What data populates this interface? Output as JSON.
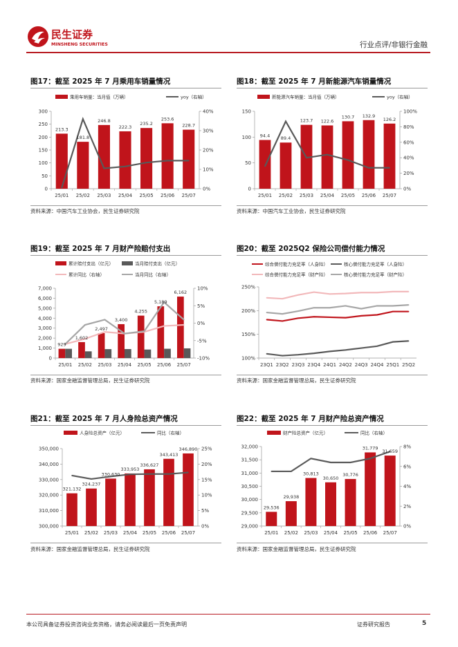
{
  "header": {
    "brand_cn": "民生证券",
    "brand_en": "MINSHENG SECURITIES",
    "category": "行业点评/非银行金融"
  },
  "footer": {
    "disclaimer": "本公司具备证券投资咨询业务资格，请务必阅读最后一页免责声明",
    "report_type": "证券研究报告",
    "page_number": "5"
  },
  "colors": {
    "red": "#c0141b",
    "dark": "#595959",
    "gray": "#a6a6a6",
    "pink": "#f2b8ba"
  },
  "charts": [
    {
      "id": "fig17",
      "title": "图17：截至 2025 年 7 月乘用车销量情况",
      "source": "资料来源：中国汽车工业协会，民生证券研究院",
      "legend": [
        {
          "label": "乘用车销量：当月值（万辆）",
          "kind": "bar",
          "color": "#c0141b"
        },
        {
          "label": "yoy（右轴）",
          "kind": "line",
          "color": "#595959"
        }
      ],
      "left_ticks": [
        "0",
        "50",
        "100",
        "150",
        "200",
        "250",
        "300"
      ],
      "right_ticks": [
        "0%",
        "10%",
        "20%",
        "30%",
        "40%"
      ]
    },
    {
      "id": "fig18",
      "title": "图18：截至 2025 年 7 月新能源汽车销量情况",
      "source": "资料来源：中国汽车工业协会，民生证券研究院",
      "legend": [
        {
          "label": "新能源汽车销量：当月值（万辆）",
          "kind": "bar",
          "color": "#c0141b"
        },
        {
          "label": "yoy（右轴）",
          "kind": "line",
          "color": "#595959"
        }
      ],
      "left_ticks": [
        "0",
        "50",
        "100",
        "150"
      ],
      "right_ticks": [
        "0%",
        "20%",
        "40%",
        "60%",
        "80%",
        "100%"
      ]
    },
    {
      "id": "fig19",
      "title": "图19：截至 2025 年 7 月财产险赔付支出",
      "source": "资料来源：国家金融监督管理总局，民生证券研究院",
      "legend": [
        {
          "label": "累计赔付支出（亿元）",
          "kind": "bar",
          "color": "#c0141b"
        },
        {
          "label": "当月赔付支出（亿元）",
          "kind": "bar",
          "color": "#595959"
        },
        {
          "label": "累计同比（右轴）",
          "kind": "line",
          "color": "#f2b8ba"
        },
        {
          "label": "当月同比（右轴）",
          "kind": "line",
          "color": "#a6a6a6"
        }
      ],
      "left_ticks": [
        "0",
        "1,000",
        "2,000",
        "3,000",
        "4,000",
        "5,000",
        "6,000",
        "7,000"
      ],
      "right_ticks": [
        "-10%",
        "-5%",
        "0%",
        "5%",
        "10%"
      ]
    },
    {
      "id": "fig20",
      "title": "图20：截至 2025Q2 保险公司偿付能力情况",
      "source": "资料来源：国家金融监督管理总局，民生证券研究院",
      "legend": [
        {
          "label": "综合偿付能力充足率（人身险）",
          "kind": "line",
          "color": "#c0141b"
        },
        {
          "label": "核心偿付能力充足率（人身险）",
          "kind": "line",
          "color": "#595959"
        },
        {
          "label": "综合偿付能力充足率（财产险）",
          "kind": "line",
          "color": "#f2b8ba"
        },
        {
          "label": "核心偿付能力充足率（财产险）",
          "kind": "line",
          "color": "#a6a6a6"
        }
      ],
      "left_ticks": [
        "100%",
        "150%",
        "200%",
        "250%"
      ],
      "right_ticks": []
    },
    {
      "id": "fig21",
      "title": "图21：截至 2025 年 7 月人身险总资产情况",
      "source": "资料来源：国家金融监督管理总局，民生证券研究院",
      "legend": [
        {
          "label": "人身险总资产（亿元）",
          "kind": "bar",
          "color": "#c0141b"
        },
        {
          "label": "同比（右轴）",
          "kind": "line",
          "color": "#595959"
        }
      ],
      "left_ticks": [
        "300,000",
        "310,000",
        "320,000",
        "330,000",
        "340,000",
        "350,000"
      ],
      "right_ticks": [
        "0%",
        "5%",
        "10%",
        "15%",
        "20%",
        "25%"
      ]
    },
    {
      "id": "fig22",
      "title": "图22：截至 2025 年 7 月财产险总资产情况",
      "source": "资料来源：国家金融监督管理总局，民生证券研究院",
      "legend": [
        {
          "label": "财产险总资产（亿元）",
          "kind": "bar",
          "color": "#c0141b"
        },
        {
          "label": "同比（右轴）",
          "kind": "line",
          "color": "#595959"
        }
      ],
      "left_ticks": [
        "29,000",
        "29,500",
        "30,000",
        "30,500",
        "31,000",
        "31,500",
        "32,000"
      ],
      "right_ticks": [
        "0%",
        "2%",
        "4%",
        "6%",
        "8%"
      ]
    }
  ],
  "chart_data": [
    {
      "type": "bar",
      "title": "图17：截至 2025 年 7 月乘用车销量情况",
      "categories": [
        "25/01",
        "25/02",
        "25/03",
        "25/04",
        "25/05",
        "25/06",
        "25/07"
      ],
      "series": [
        {
          "name": "乘用车销量：当月值（万辆）",
          "axis": "left",
          "type": "bar",
          "values": [
            213.3,
            181.8,
            246.8,
            222.3,
            235.2,
            253.6,
            228.7
          ],
          "labels": [
            "213.3",
            "181.8",
            "246.8",
            "222.3",
            "235.2",
            "253.6",
            "228.7"
          ]
        },
        {
          "name": "yoy（右轴）",
          "axis": "right",
          "type": "line",
          "values": [
            0.5,
            36,
            10.5,
            11.5,
            13.5,
            14.5,
            14.5
          ]
        }
      ],
      "ylim": [
        0,
        300
      ],
      "y2lim": [
        0,
        40
      ]
    },
    {
      "type": "bar",
      "title": "图18：截至 2025 年 7 月新能源汽车销量情况",
      "categories": [
        "25/01",
        "25/02",
        "25/03",
        "25/04",
        "25/05",
        "25/06",
        "25/07"
      ],
      "series": [
        {
          "name": "新能源汽车销量：当月值（万辆）",
          "axis": "left",
          "type": "bar",
          "values": [
            94.4,
            89.4,
            123.7,
            122.6,
            130.7,
            132.9,
            126.2
          ],
          "labels": [
            "94.4",
            "89.4",
            "123.7",
            "122.6",
            "130.7",
            "132.9",
            "126.2"
          ]
        },
        {
          "name": "yoy（右轴）",
          "axis": "right",
          "type": "line",
          "values": [
            29,
            87,
            40,
            44,
            37,
            27,
            27
          ]
        }
      ],
      "ylim": [
        0,
        150
      ],
      "y2lim": [
        0,
        100
      ]
    },
    {
      "type": "bar",
      "title": "图19：截至 2025 年 7 月财产险赔付支出",
      "categories": [
        "25/01",
        "25/02",
        "25/03",
        "25/04",
        "25/05",
        "25/06",
        "25/07"
      ],
      "series": [
        {
          "name": "累计赔付支出（亿元）",
          "axis": "left",
          "type": "bar",
          "values": [
            929,
            1602,
            2497,
            3400,
            4255,
            5189,
            6162
          ],
          "labels": [
            "929",
            "1,602",
            "2,497",
            "3,400",
            "4,255",
            "5,189",
            "6,162"
          ]
        },
        {
          "name": "当月赔付支出（亿元）",
          "axis": "left",
          "type": "bar",
          "values": [
            929,
            673,
            895,
            903,
            855,
            934,
            973
          ]
        },
        {
          "name": "累计同比（右轴）",
          "axis": "right",
          "type": "line",
          "values": [
            -6,
            -4.5,
            -2.5,
            -3,
            -2.5,
            -0.8,
            -0.5
          ]
        },
        {
          "name": "当月同比（右轴）",
          "axis": "right",
          "type": "line",
          "values": [
            -6,
            -0.5,
            1,
            -3,
            -2.3,
            6,
            1
          ]
        }
      ],
      "ylim": [
        0,
        7000
      ],
      "y2lim": [
        -10,
        10
      ]
    },
    {
      "type": "line",
      "title": "图20：截至 2025Q2 保险公司偿付能力情况",
      "categories": [
        "23Q1",
        "23Q2",
        "23Q3",
        "23Q4",
        "24Q1",
        "24Q2",
        "24Q3",
        "24Q4",
        "25Q1",
        "25Q2"
      ],
      "series": [
        {
          "name": "综合偿付能力充足率（人身险）",
          "values": [
            181,
            178,
            184,
            187,
            186,
            185,
            189,
            191,
            198,
            198
          ]
        },
        {
          "name": "核心偿付能力充足率（人身险）",
          "values": [
            109,
            105,
            107,
            110,
            114,
            117,
            121,
            125,
            134,
            136
          ]
        },
        {
          "name": "综合偿付能力充足率（财产险）",
          "values": [
            227,
            225,
            233,
            239,
            235,
            236,
            238,
            238,
            240,
            240
          ]
        },
        {
          "name": "核心偿付能力充足率（财产险）",
          "values": [
            196,
            193,
            199,
            206,
            206,
            210,
            204,
            210,
            210,
            212
          ]
        }
      ],
      "ylim": [
        100,
        250
      ]
    },
    {
      "type": "bar",
      "title": "图21：截至 2025 年 7 月人身险总资产情况",
      "categories": [
        "25/01",
        "25/02",
        "25/03",
        "25/04",
        "25/05",
        "25/06",
        "25/07"
      ],
      "series": [
        {
          "name": "人身险总资产（亿元）",
          "axis": "left",
          "type": "bar",
          "values": [
            321132,
            324237,
            330630,
            333953,
            336627,
            343413,
            346890
          ],
          "labels": [
            "321,132",
            "324,237",
            "330,630",
            "333,953",
            "336,627",
            "343,413",
            "346,890"
          ]
        },
        {
          "name": "同比（右轴）",
          "axis": "right",
          "type": "line",
          "values": [
            16.3,
            15.2,
            16,
            16.7,
            16.8,
            16.8,
            17.3
          ]
        }
      ],
      "ylim": [
        300000,
        350000
      ],
      "y2lim": [
        0,
        25
      ]
    },
    {
      "type": "bar",
      "title": "图22：截至 2025 年 7 月财产险总资产情况",
      "categories": [
        "25/01",
        "25/02",
        "25/03",
        "25/04",
        "25/05",
        "25/06",
        "25/07"
      ],
      "series": [
        {
          "name": "财产险总资产（亿元）",
          "axis": "left",
          "type": "bar",
          "values": [
            29536,
            29938,
            30813,
            30650,
            30776,
            31779,
            31659
          ],
          "labels": [
            "29,536",
            "29,938",
            "30,813",
            "30,650",
            "30,776",
            "31,779",
            "31,659"
          ]
        },
        {
          "name": "同比（右轴）",
          "axis": "right",
          "type": "line",
          "values": [
            5.5,
            5.5,
            6.8,
            6.4,
            6.4,
            6.8,
            7.5
          ]
        }
      ],
      "ylim": [
        29000,
        32000
      ],
      "y2lim": [
        0,
        8
      ]
    }
  ]
}
